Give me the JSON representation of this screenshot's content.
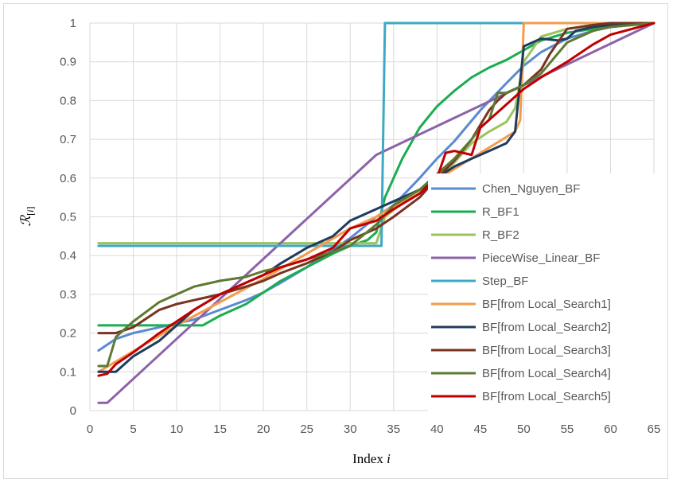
{
  "chart_data": {
    "type": "line",
    "xlabel": "Index i",
    "ylabel": "R[i]",
    "xlim": [
      0,
      65
    ],
    "ylim": [
      0,
      1
    ],
    "grid": true,
    "legend_position": "right-bottom",
    "xticks": [
      "0",
      "5",
      "10",
      "15",
      "20",
      "25",
      "30",
      "35",
      "40",
      "45",
      "50",
      "55",
      "60",
      "65"
    ],
    "yticks": [
      "0",
      "0.1",
      "0.2",
      "0.3",
      "0.4",
      "0.5",
      "0.6",
      "0.7",
      "0.8",
      "0.9",
      "1"
    ],
    "series": [
      {
        "name": "Chen_Nguyen_BF",
        "color": "#5b8ad0",
        "x": [
          1,
          3,
          5,
          8,
          10,
          12,
          15,
          18,
          20,
          22,
          25,
          28,
          30,
          33,
          35,
          38,
          40,
          42,
          45,
          48,
          50,
          52,
          55,
          58,
          60,
          62,
          65
        ],
        "y": [
          0.155,
          0.185,
          0.2,
          0.215,
          0.225,
          0.235,
          0.26,
          0.285,
          0.305,
          0.33,
          0.37,
          0.415,
          0.445,
          0.5,
          0.53,
          0.6,
          0.65,
          0.695,
          0.775,
          0.845,
          0.89,
          0.925,
          0.96,
          0.98,
          0.99,
          0.995,
          1.0
        ]
      },
      {
        "name": "R_BF1",
        "color": "#1aad50",
        "x": [
          1,
          5,
          10,
          12,
          13,
          15,
          18,
          20,
          22,
          25,
          28,
          30,
          32,
          33,
          34,
          36,
          38,
          40,
          42,
          44,
          46,
          48,
          50,
          52,
          55,
          58,
          60,
          65
        ],
        "y": [
          0.22,
          0.22,
          0.22,
          0.22,
          0.22,
          0.245,
          0.275,
          0.305,
          0.335,
          0.37,
          0.405,
          0.425,
          0.44,
          0.46,
          0.55,
          0.65,
          0.73,
          0.785,
          0.825,
          0.86,
          0.885,
          0.905,
          0.93,
          0.955,
          0.975,
          0.985,
          0.99,
          1.0
        ]
      },
      {
        "name": "R_BF2",
        "color": "#9bc35e",
        "x": [
          1,
          10,
          20,
          30,
          32,
          33,
          34,
          36,
          38,
          40,
          42,
          44,
          46,
          48,
          49,
          50,
          52,
          55,
          58,
          60,
          65
        ],
        "y": [
          0.432,
          0.432,
          0.432,
          0.432,
          0.432,
          0.432,
          0.5,
          0.535,
          0.56,
          0.6,
          0.64,
          0.69,
          0.72,
          0.745,
          0.78,
          0.9,
          0.965,
          0.985,
          0.995,
          1.0,
          1.0
        ]
      },
      {
        "name": "PieceWise_Linear_BF",
        "color": "#8c62a8",
        "x": [
          1,
          2,
          33,
          50,
          65
        ],
        "y": [
          0.02,
          0.02,
          0.66,
          0.84,
          1.0
        ]
      },
      {
        "name": "Step_BF",
        "color": "#3fa8c6",
        "x": [
          1,
          33,
          33.6,
          34,
          40,
          50,
          60,
          65
        ],
        "y": [
          0.425,
          0.425,
          0.425,
          1.0,
          1.0,
          1.0,
          1.0,
          1.0
        ]
      },
      {
        "name": "BF[from Local_Search1]",
        "color": "#f39c4d",
        "x": [
          1,
          10,
          20,
          30,
          33,
          49,
          49.6,
          50,
          55,
          65
        ],
        "y": [
          0.1,
          0.22,
          0.34,
          0.47,
          0.5,
          0.72,
          0.75,
          1.0,
          1.0,
          1.0
        ]
      },
      {
        "name": "BF[from Local_Search2]",
        "color": "#1f3c5e",
        "x": [
          1,
          2,
          3,
          5,
          8,
          10,
          12,
          15,
          18,
          20,
          22,
          25,
          28,
          30,
          33,
          35,
          38,
          40,
          42,
          44,
          46,
          48,
          49,
          50,
          52,
          54,
          55,
          56,
          58,
          60,
          65
        ],
        "y": [
          0.1,
          0.1,
          0.1,
          0.14,
          0.18,
          0.22,
          0.26,
          0.3,
          0.33,
          0.35,
          0.38,
          0.42,
          0.45,
          0.49,
          0.52,
          0.54,
          0.57,
          0.6,
          0.63,
          0.65,
          0.67,
          0.69,
          0.72,
          0.94,
          0.96,
          0.955,
          0.96,
          0.98,
          0.99,
          0.995,
          1.0
        ]
      },
      {
        "name": "BF[from Local_Search3]",
        "color": "#7a3320",
        "x": [
          1,
          3,
          5,
          8,
          10,
          12,
          15,
          18,
          20,
          22,
          25,
          28,
          30,
          33,
          35,
          38,
          40,
          42,
          44,
          46,
          47,
          48,
          50,
          52,
          53,
          55,
          58,
          60,
          65
        ],
        "y": [
          0.2,
          0.2,
          0.215,
          0.26,
          0.275,
          0.285,
          0.3,
          0.32,
          0.335,
          0.355,
          0.38,
          0.41,
          0.44,
          0.47,
          0.5,
          0.55,
          0.6,
          0.645,
          0.7,
          0.775,
          0.8,
          0.82,
          0.84,
          0.88,
          0.92,
          0.985,
          0.995,
          1.0,
          1.0
        ]
      },
      {
        "name": "BF[from Local_Search4]",
        "color": "#5e7a32",
        "x": [
          1,
          2,
          3,
          5,
          8,
          10,
          12,
          15,
          18,
          20,
          22,
          25,
          28,
          30,
          33,
          35,
          38,
          40,
          42,
          44,
          45,
          46,
          47,
          48,
          50,
          52,
          55,
          58,
          60,
          65
        ],
        "y": [
          0.115,
          0.115,
          0.19,
          0.23,
          0.28,
          0.3,
          0.32,
          0.335,
          0.345,
          0.36,
          0.37,
          0.39,
          0.41,
          0.425,
          0.48,
          0.53,
          0.57,
          0.61,
          0.65,
          0.7,
          0.73,
          0.75,
          0.82,
          0.82,
          0.84,
          0.87,
          0.95,
          0.98,
          0.99,
          1.0
        ]
      },
      {
        "name": "BF[from Local_Search5]",
        "color": "#c00000",
        "x": [
          1,
          2,
          3,
          5,
          8,
          10,
          12,
          15,
          18,
          20,
          22,
          25,
          28,
          30,
          33,
          35,
          38,
          40,
          41,
          42,
          44,
          45,
          47,
          48,
          49,
          50,
          52,
          55,
          58,
          60,
          65
        ],
        "y": [
          0.09,
          0.095,
          0.12,
          0.15,
          0.2,
          0.23,
          0.26,
          0.3,
          0.33,
          0.35,
          0.37,
          0.39,
          0.42,
          0.47,
          0.49,
          0.52,
          0.56,
          0.6,
          0.665,
          0.67,
          0.66,
          0.73,
          0.77,
          0.79,
          0.81,
          0.83,
          0.86,
          0.9,
          0.945,
          0.97,
          1.0
        ]
      }
    ]
  }
}
